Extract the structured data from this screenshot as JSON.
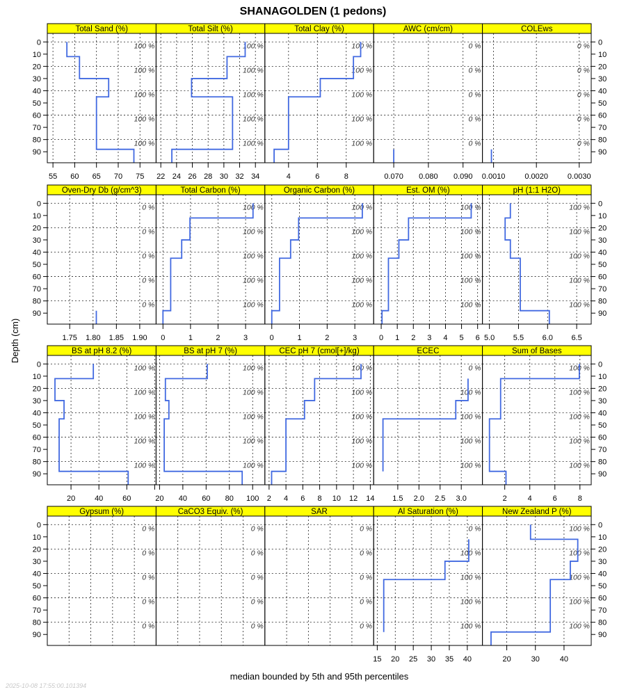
{
  "chart_data": {
    "type": "line",
    "title": "SHANAGOLDEN (1 pedons)",
    "ylabel": "Depth (cm)",
    "xlabel": "median bounded by 5th and 95th percentiles",
    "timestamp": "2025-10-08 17:55:00.101394",
    "ylim": [
      -7,
      99
    ],
    "y_ticks": [
      0,
      10,
      20,
      30,
      40,
      50,
      60,
      70,
      80,
      90
    ],
    "pct_depths": [
      0,
      20,
      40,
      60,
      80
    ],
    "horizon_tops": [
      0,
      12,
      30,
      45,
      88
    ],
    "horizon_bottoms": [
      12,
      30,
      45,
      88,
      100
    ],
    "line_color": "#4169E1",
    "strip_color": "#FFFF00",
    "grid": true,
    "panels": [
      {
        "name": "Total Sand (%)",
        "xlim": [
          53.7,
          78.7
        ],
        "ticks": [
          55,
          60,
          65,
          70,
          75
        ],
        "tick_labels": [
          "55",
          "60",
          "65",
          "70",
          "75"
        ],
        "values": [
          58.2,
          61.1,
          67.8,
          65.0,
          73.6
        ],
        "pct": [
          "100 %",
          "100 %",
          "100 %",
          "100 %",
          "100 %"
        ]
      },
      {
        "name": "Total Silt (%)",
        "xlim": [
          21.4,
          35.2
        ],
        "ticks": [
          22,
          24,
          26,
          28,
          30,
          32,
          34
        ],
        "tick_labels": [
          "22",
          "24",
          "26",
          "28",
          "30",
          "32",
          "34"
        ],
        "values": [
          32.7,
          30.4,
          25.9,
          31.1,
          23.4
        ],
        "pct": [
          "100 %",
          "100 %",
          "100 %",
          "100 %",
          "100 %"
        ]
      },
      {
        "name": "Total Clay (%)",
        "xlim": [
          2.36,
          9.9
        ],
        "ticks": [
          4,
          6,
          8
        ],
        "tick_labels": [
          "4",
          "6",
          "8"
        ],
        "values": [
          9.0,
          8.5,
          6.2,
          4.0,
          3.0
        ],
        "pct": [
          "100 %",
          "100 %",
          "100 %",
          "100 %",
          "100 %"
        ]
      },
      {
        "name": "AWC (cm/cm)",
        "xlim": [
          0.0642,
          0.0956
        ],
        "ticks": [
          0.07,
          0.08,
          0.09
        ],
        "tick_labels": [
          "0.070",
          "0.080",
          "0.090"
        ],
        "values": [
          null,
          null,
          null,
          null,
          0.07
        ],
        "pct": [
          "0 %",
          "0 %",
          "0 %",
          "0 %",
          "0 %"
        ]
      },
      {
        "name": "COLEws",
        "xlim": [
          0.00074,
          0.00328
        ],
        "ticks": [
          0.001,
          0.002,
          0.003
        ],
        "tick_labels": [
          "0.0010",
          "0.0020",
          "0.0030"
        ],
        "values": [
          null,
          null,
          null,
          null,
          0.00095
        ],
        "pct": [
          "0 %",
          "0 %",
          "0 %",
          "0 %",
          "0 %"
        ]
      },
      {
        "name": "Oven-Dry Db (g/cm^3)",
        "xlim": [
          1.702,
          1.935
        ],
        "ticks": [
          1.75,
          1.8,
          1.85,
          1.9
        ],
        "tick_labels": [
          "1.75",
          "1.80",
          "1.85",
          "1.90"
        ],
        "values": [
          null,
          null,
          null,
          null,
          1.807
        ],
        "pct": [
          "0 %",
          "0 %",
          "0 %",
          "0 %",
          "0 %"
        ]
      },
      {
        "name": "Total Carbon (%)",
        "xlim": [
          -0.25,
          3.7
        ],
        "ticks": [
          0,
          1,
          2,
          3
        ],
        "tick_labels": [
          "0",
          "1",
          "2",
          "3"
        ],
        "values": [
          3.27,
          0.98,
          0.68,
          0.28,
          0.0
        ],
        "pct": [
          "100 %",
          "100 %",
          "100 %",
          "100 %",
          "100 %"
        ]
      },
      {
        "name": "Organic Carbon (%)",
        "xlim": [
          -0.25,
          3.68
        ],
        "ticks": [
          0,
          1,
          2,
          3
        ],
        "tick_labels": [
          "0",
          "1",
          "2",
          "3"
        ],
        "values": [
          3.27,
          0.97,
          0.68,
          0.28,
          0.0
        ],
        "pct": [
          "100 %",
          "100 %",
          "100 %",
          "100 %",
          "100 %"
        ]
      },
      {
        "name": "Est. OM (%)",
        "xlim": [
          -0.47,
          6.3
        ],
        "ticks": [
          0,
          1,
          2,
          3,
          4,
          5,
          6
        ],
        "tick_labels": [
          "0",
          "1",
          "2",
          "3",
          "4",
          "5",
          "6"
        ],
        "values": [
          5.6,
          1.7,
          1.1,
          0.45,
          0.05
        ],
        "pct": [
          "100 %",
          "100 %",
          "100 %",
          "100 %",
          "100 %"
        ]
      },
      {
        "name": "pH (1:1 H2O)",
        "xlim": [
          4.88,
          6.75
        ],
        "ticks": [
          5.0,
          5.5,
          6.0,
          6.5
        ],
        "tick_labels": [
          "5.0",
          "5.5",
          "6.0",
          "6.5"
        ],
        "values": [
          5.36,
          5.27,
          5.36,
          5.53,
          6.03
        ],
        "pct": [
          "100 %",
          "100 %",
          "100 %",
          "100 %",
          "100 %"
        ]
      },
      {
        "name": "BS at pH 8.2 (%)",
        "xlim": [
          3,
          81
        ],
        "ticks": [
          20,
          40,
          60,
          80
        ],
        "tick_labels": [
          "20",
          "40",
          "60",
          ""
        ],
        "values": [
          36,
          8.5,
          15,
          11.5,
          61
        ],
        "pct": [
          "100 %",
          "100 %",
          "100 %",
          "100 %",
          "100 %"
        ]
      },
      {
        "name": "BS at pH 7 (%)",
        "xlim": [
          17,
          110.5
        ],
        "ticks": [
          20,
          40,
          60,
          80,
          100
        ],
        "tick_labels": [
          "20",
          "40",
          "60",
          "80",
          "100"
        ],
        "values": [
          61,
          25,
          28,
          24,
          91
        ],
        "pct": [
          "100 %",
          "100 %",
          "100 %",
          "100 %",
          "100 %"
        ]
      },
      {
        "name": "CEC pH 7 (cmol[+]/kg)",
        "xlim": [
          1.5,
          14.4
        ],
        "ticks": [
          2,
          4,
          6,
          8,
          10,
          12,
          14
        ],
        "tick_labels": [
          "2",
          "4",
          "6",
          "8",
          "10",
          "12",
          "14"
        ],
        "values": [
          12.9,
          7.4,
          6.2,
          4.0,
          2.3
        ],
        "pct": [
          "100 %",
          "100 %",
          "100 %",
          "100 %",
          "100 %"
        ]
      },
      {
        "name": "ECEC",
        "xlim": [
          0.93,
          3.5
        ],
        "ticks": [
          1.5,
          2.0,
          2.5,
          3.0
        ],
        "tick_labels": [
          "1.5",
          "2.0",
          "2.5",
          "3.0"
        ],
        "values": [
          null,
          3.16,
          2.87,
          1.15,
          null
        ],
        "pct": [
          "0 %",
          "100 %",
          "100 %",
          "100 %",
          "100 %"
        ]
      },
      {
        "name": "Sum of Bases",
        "xlim": [
          0.22,
          8.9
        ],
        "ticks": [
          2,
          4,
          6,
          8
        ],
        "tick_labels": [
          "2",
          "4",
          "6",
          "8"
        ],
        "values": [
          7.95,
          1.67,
          1.67,
          0.78,
          2.1
        ],
        "pct": [
          "100 %",
          "100 %",
          "100 %",
          "100 %",
          "100 %"
        ]
      },
      {
        "name": "Gypsum (%)",
        "xlim": [
          0,
          1
        ],
        "ticks": [
          0.2,
          0.4,
          0.6,
          0.8
        ],
        "tick_labels": [
          "",
          "",
          "",
          ""
        ],
        "values": [
          null,
          null,
          null,
          null,
          null
        ],
        "pct": [
          "0 %",
          "0 %",
          "0 %",
          "0 %",
          "0 %"
        ],
        "no_axis": true
      },
      {
        "name": "CaCO3 Equiv. (%)",
        "xlim": [
          0,
          1
        ],
        "ticks": [
          0.2,
          0.4,
          0.6,
          0.8
        ],
        "tick_labels": [
          "",
          "",
          "",
          ""
        ],
        "values": [
          null,
          null,
          null,
          null,
          null
        ],
        "pct": [
          "0 %",
          "0 %",
          "0 %",
          "0 %",
          "0 %"
        ],
        "no_axis": true
      },
      {
        "name": "SAR",
        "xlim": [
          0,
          1
        ],
        "ticks": [
          0.2,
          0.4,
          0.6,
          0.8
        ],
        "tick_labels": [
          "",
          "",
          "",
          ""
        ],
        "values": [
          null,
          null,
          null,
          null,
          null
        ],
        "pct": [
          "0 %",
          "0 %",
          "0 %",
          "0 %",
          "0 %"
        ],
        "no_axis": true
      },
      {
        "name": "Al Saturation (%)",
        "xlim": [
          14.0,
          44.2
        ],
        "ticks": [
          15,
          20,
          25,
          30,
          35,
          40
        ],
        "tick_labels": [
          "15",
          "20",
          "25",
          "30",
          "35",
          "40"
        ],
        "values": [
          null,
          40.4,
          33.8,
          16.8,
          null
        ],
        "pct": [
          "0 %",
          "100 %",
          "100 %",
          "100 %",
          "100 %"
        ]
      },
      {
        "name": "New Zealand P (%)",
        "xlim": [
          11.5,
          49.5
        ],
        "ticks": [
          20,
          30,
          40
        ],
        "tick_labels": [
          "20",
          "30",
          "40"
        ],
        "values": [
          28.3,
          44.8,
          42.2,
          35.2,
          14.5
        ],
        "pct": [
          "100 %",
          "100 %",
          "100 %",
          "100 %",
          "100 %"
        ]
      }
    ]
  }
}
